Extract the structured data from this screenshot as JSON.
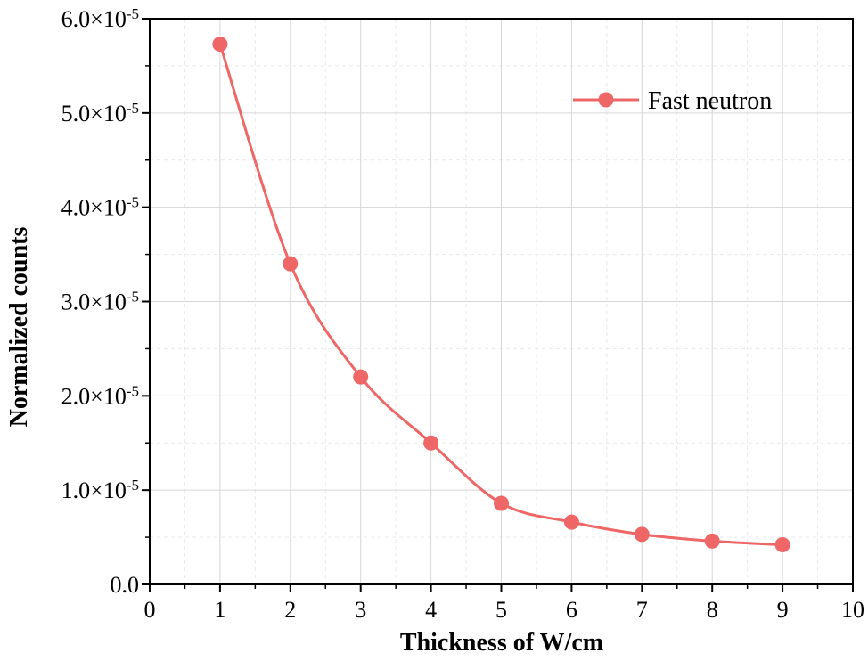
{
  "chart_data": {
    "type": "line",
    "xlabel": "Thickness of W/cm",
    "ylabel": "Normalized counts",
    "xlim": [
      0,
      10
    ],
    "ylim": [
      0,
      6e-05
    ],
    "x_ticks": [
      0,
      1,
      2,
      3,
      4,
      5,
      6,
      7,
      8,
      9,
      10
    ],
    "x_tick_labels": [
      "0",
      "1",
      "2",
      "3",
      "4",
      "5",
      "6",
      "7",
      "8",
      "9",
      "10"
    ],
    "y_ticks": [
      0,
      1e-05,
      2e-05,
      3e-05,
      4e-05,
      5e-05,
      6e-05
    ],
    "y_tick_labels": [
      {
        "mantissa": "0.0",
        "exp": ""
      },
      {
        "mantissa": "1.0×10",
        "exp": "-5"
      },
      {
        "mantissa": "2.0×10",
        "exp": "-5"
      },
      {
        "mantissa": "3.0×10",
        "exp": "-5"
      },
      {
        "mantissa": "4.0×10",
        "exp": "-5"
      },
      {
        "mantissa": "5.0×10",
        "exp": "-5"
      },
      {
        "mantissa": "6.0×10",
        "exp": "-5"
      }
    ],
    "grid": true,
    "legend_position": "top-right",
    "series": [
      {
        "name": "Fast neutron",
        "color": "#ee6666",
        "marker": "circle",
        "x": [
          1,
          2,
          3,
          4,
          5,
          6,
          7,
          8,
          9
        ],
        "y": [
          5.73e-05,
          3.4e-05,
          2.2e-05,
          1.5e-05,
          8.6e-06,
          6.6e-06,
          5.3e-06,
          4.6e-06,
          4.2e-06
        ]
      }
    ]
  }
}
